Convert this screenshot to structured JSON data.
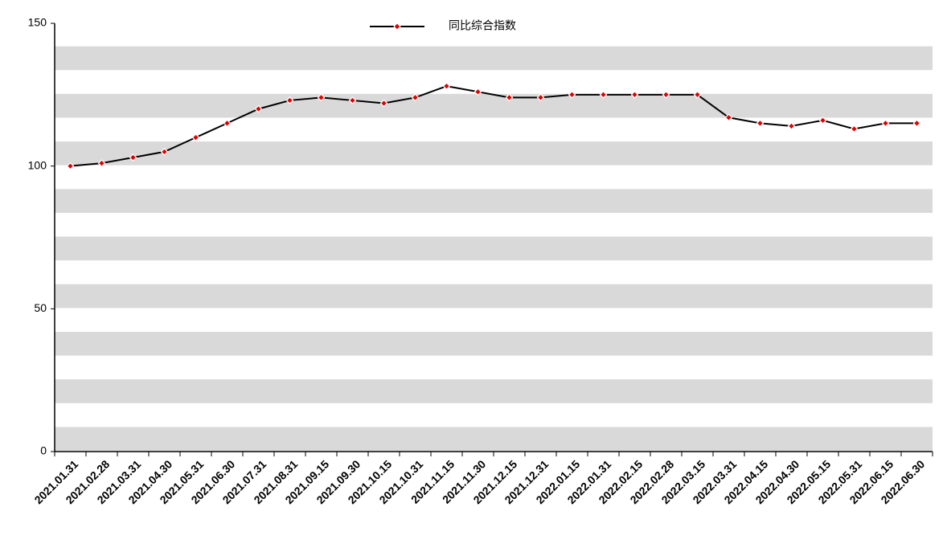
{
  "chart_data": {
    "type": "line",
    "categories": [
      "2021.01.31",
      "2021.02.28",
      "2021.03.31",
      "2021.04.30",
      "2021.05.31",
      "2021.06.30",
      "2021.07.31",
      "2021.08.31",
      "2021.09.15",
      "2021.09.30",
      "2021.10.15",
      "2021.10.31",
      "2021.11.15",
      "2021.11.30",
      "2021.12.15",
      "2021.12.31",
      "2022.01.15",
      "2022.01.31",
      "2022.02.15",
      "2022.02.28",
      "2022.03.15",
      "2022.03.31",
      "2022.04.15",
      "2022.04.30",
      "2022.05.15",
      "2022.05.31",
      "2022.06.15",
      "2022.06.30"
    ],
    "series": [
      {
        "name": "同比综合指数",
        "color": "#000000",
        "marker_color": "#e00000",
        "values": [
          100,
          101,
          103,
          105,
          110,
          115,
          120,
          123,
          124,
          123,
          122,
          124,
          128,
          126,
          124,
          124,
          125,
          125,
          125,
          125,
          125,
          117,
          115,
          114,
          116,
          113,
          115,
          115
        ]
      }
    ],
    "ylim": [
      0,
      150
    ],
    "yticks": [
      0,
      50,
      100,
      150
    ],
    "legend": "top"
  }
}
